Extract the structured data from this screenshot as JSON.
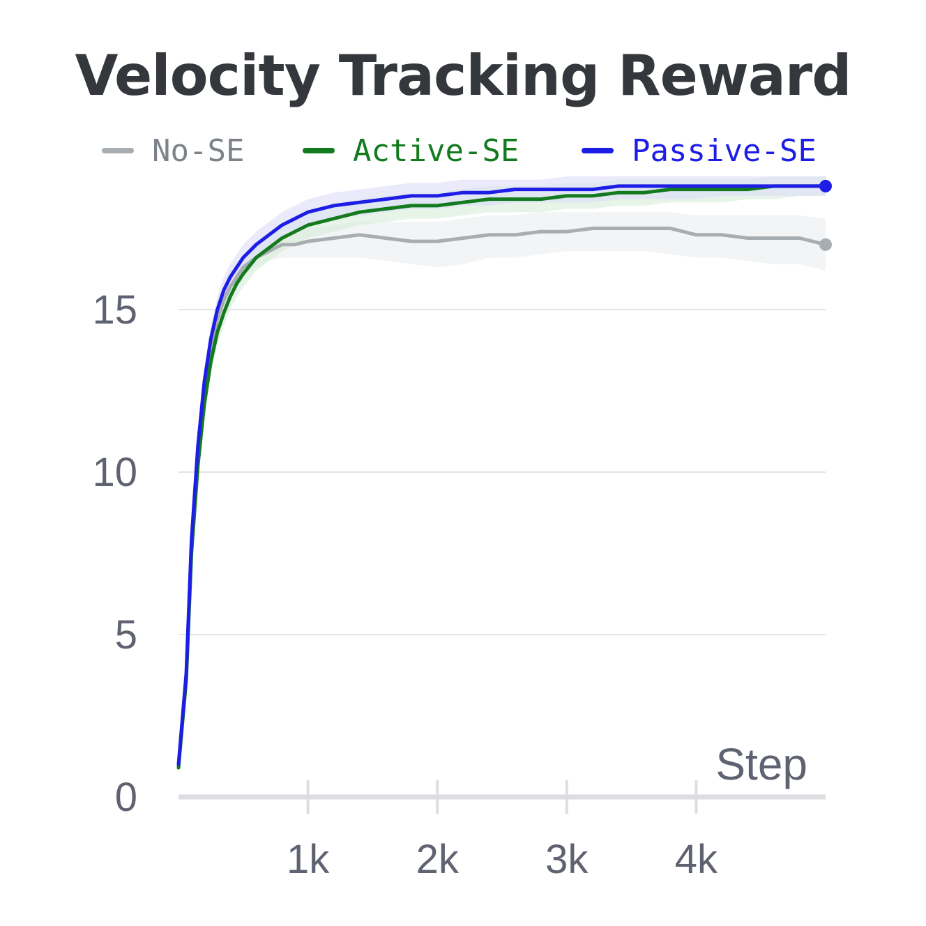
{
  "chart_data": {
    "type": "line",
    "title": "Velocity Tracking Reward",
    "xlabel": "Step",
    "ylabel": "",
    "xlim": [
      0,
      5000
    ],
    "ylim": [
      0,
      20
    ],
    "x_ticks": [
      {
        "value": 1000,
        "label": "1k"
      },
      {
        "value": 2000,
        "label": "2k"
      },
      {
        "value": 3000,
        "label": "3k"
      },
      {
        "value": 4000,
        "label": "4k"
      }
    ],
    "y_ticks": [
      {
        "value": 0,
        "label": "0"
      },
      {
        "value": 5,
        "label": "5"
      },
      {
        "value": 10,
        "label": "10"
      },
      {
        "value": 15,
        "label": "15"
      }
    ],
    "grid": true,
    "legend_position": "top",
    "series": [
      {
        "name": "No-SE",
        "color": "#a8adb1",
        "band_color": "#e9ecee",
        "x": [
          0,
          60,
          100,
          150,
          200,
          250,
          300,
          350,
          400,
          450,
          500,
          600,
          700,
          800,
          900,
          1000,
          1200,
          1400,
          1600,
          1800,
          2000,
          2200,
          2400,
          2600,
          2800,
          3000,
          3200,
          3400,
          3600,
          3800,
          4000,
          4200,
          4400,
          4600,
          4800,
          5000
        ],
        "y": [
          1.0,
          3.8,
          7.8,
          10.6,
          12.5,
          13.8,
          14.7,
          15.3,
          15.7,
          16.0,
          16.3,
          16.6,
          16.8,
          17.0,
          17.0,
          17.1,
          17.2,
          17.3,
          17.2,
          17.1,
          17.1,
          17.2,
          17.3,
          17.3,
          17.4,
          17.4,
          17.5,
          17.5,
          17.5,
          17.5,
          17.3,
          17.3,
          17.2,
          17.2,
          17.2,
          17.0
        ],
        "lower": [
          1.0,
          3.6,
          7.5,
          10.2,
          12.1,
          13.4,
          14.3,
          14.9,
          15.4,
          15.7,
          16.0,
          16.3,
          16.5,
          16.6,
          16.6,
          16.6,
          16.6,
          16.6,
          16.5,
          16.4,
          16.3,
          16.4,
          16.6,
          16.6,
          16.7,
          16.8,
          16.8,
          16.8,
          16.8,
          16.7,
          16.6,
          16.6,
          16.5,
          16.4,
          16.4,
          16.2
        ],
        "upper": [
          1.0,
          4.0,
          8.1,
          11.0,
          12.9,
          14.2,
          15.1,
          15.7,
          16.1,
          16.4,
          16.6,
          16.9,
          17.1,
          17.3,
          17.4,
          17.5,
          17.6,
          17.7,
          17.7,
          17.7,
          17.7,
          17.8,
          17.9,
          17.9,
          18.0,
          18.0,
          18.0,
          18.0,
          18.0,
          18.0,
          17.9,
          17.9,
          17.9,
          17.9,
          17.9,
          17.8
        ]
      },
      {
        "name": "Active-SE",
        "color": "#137a1e",
        "band_color": "#d7ecd9",
        "x": [
          0,
          60,
          100,
          150,
          200,
          250,
          300,
          350,
          400,
          450,
          500,
          600,
          700,
          800,
          900,
          1000,
          1200,
          1400,
          1600,
          1800,
          2000,
          2200,
          2400,
          2600,
          2800,
          3000,
          3200,
          3400,
          3600,
          3800,
          4000,
          4200,
          4400,
          4600,
          4800,
          5000
        ],
        "y": [
          0.9,
          3.6,
          7.5,
          10.2,
          12.1,
          13.4,
          14.3,
          14.9,
          15.4,
          15.8,
          16.1,
          16.6,
          16.9,
          17.2,
          17.4,
          17.6,
          17.8,
          18.0,
          18.1,
          18.2,
          18.2,
          18.3,
          18.4,
          18.4,
          18.4,
          18.5,
          18.5,
          18.6,
          18.6,
          18.7,
          18.7,
          18.7,
          18.7,
          18.8,
          18.8,
          18.8
        ],
        "lower": [
          0.9,
          3.4,
          7.2,
          9.8,
          11.7,
          13.0,
          13.9,
          14.5,
          15.0,
          15.4,
          15.7,
          16.2,
          16.5,
          16.8,
          17.0,
          17.2,
          17.4,
          17.6,
          17.7,
          17.8,
          17.8,
          17.9,
          18.0,
          18.0,
          18.0,
          18.1,
          18.1,
          18.2,
          18.2,
          18.3,
          18.3,
          18.3,
          18.4,
          18.4,
          18.5,
          18.5
        ],
        "upper": [
          0.9,
          3.8,
          7.8,
          10.6,
          12.5,
          13.8,
          14.7,
          15.3,
          15.8,
          16.2,
          16.5,
          17.0,
          17.3,
          17.6,
          17.8,
          18.0,
          18.2,
          18.4,
          18.5,
          18.6,
          18.6,
          18.7,
          18.8,
          18.8,
          18.8,
          18.9,
          18.9,
          19.0,
          19.0,
          19.0,
          19.0,
          19.0,
          19.0,
          19.1,
          19.1,
          19.1
        ]
      },
      {
        "name": "Passive-SE",
        "color": "#1d1de6",
        "band_color": "#dcdcf8",
        "x": [
          0,
          60,
          100,
          150,
          200,
          250,
          300,
          350,
          400,
          450,
          500,
          600,
          700,
          800,
          900,
          1000,
          1200,
          1400,
          1600,
          1800,
          2000,
          2200,
          2400,
          2600,
          2800,
          3000,
          3200,
          3400,
          3600,
          3800,
          4000,
          4200,
          4400,
          4600,
          4800,
          5000
        ],
        "y": [
          1.0,
          3.8,
          7.9,
          10.8,
          12.8,
          14.1,
          15.0,
          15.6,
          16.0,
          16.3,
          16.6,
          17.0,
          17.3,
          17.6,
          17.8,
          18.0,
          18.2,
          18.3,
          18.4,
          18.5,
          18.5,
          18.6,
          18.6,
          18.7,
          18.7,
          18.7,
          18.7,
          18.8,
          18.8,
          18.8,
          18.8,
          18.8,
          18.8,
          18.8,
          18.8,
          18.8
        ],
        "lower": [
          1.0,
          3.6,
          7.6,
          10.4,
          12.4,
          13.7,
          14.6,
          15.2,
          15.6,
          15.9,
          16.2,
          16.6,
          16.9,
          17.2,
          17.4,
          17.6,
          17.8,
          17.9,
          18.0,
          18.1,
          18.1,
          18.2,
          18.2,
          18.3,
          18.3,
          18.3,
          18.3,
          18.4,
          18.4,
          18.4,
          18.4,
          18.5,
          18.5,
          18.5,
          18.5,
          18.5
        ],
        "upper": [
          1.0,
          4.0,
          8.2,
          11.2,
          13.2,
          14.5,
          15.4,
          16.0,
          16.4,
          16.7,
          17.0,
          17.4,
          17.7,
          18.0,
          18.2,
          18.4,
          18.6,
          18.7,
          18.8,
          18.9,
          18.9,
          19.0,
          19.0,
          19.0,
          19.0,
          19.1,
          19.1,
          19.1,
          19.1,
          19.1,
          19.1,
          19.1,
          19.1,
          19.1,
          19.1,
          19.1
        ]
      }
    ]
  }
}
